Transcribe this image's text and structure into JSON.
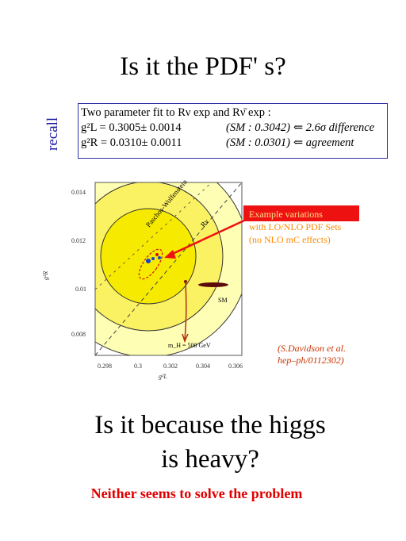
{
  "title": "Is it the PDF' s?",
  "side_label": "recall",
  "fit_box": {
    "line1": "Two parameter fit to Rν exp and Rν̄ exp :",
    "rows": [
      {
        "param": "g²L = 0.3005± 0.0014",
        "sm": "(SM : 0.3042)",
        "comment": "⇐ 2.6σ  difference"
      },
      {
        "param": "g²R = 0.0310± 0.0011",
        "sm": "(SM : 0.0301)",
        "comment": "⇐ agreement"
      }
    ]
  },
  "plot": {
    "y_ticks": [
      "0.014",
      "0.012",
      "0.01",
      "0.008"
    ],
    "x_ticks": [
      "0.298",
      "0.3",
      "0.302",
      "0.304",
      "0.306"
    ],
    "y_label": "g²R",
    "x_label": "g²L",
    "diag_label": "Paschos-Wolfenstein",
    "r_label": "Rν",
    "sm_label": "SM",
    "higgs_label": "m_H = 500 GeV",
    "colors": {
      "outer": "#fefeb4",
      "middle": "#fbf263",
      "inner": "#f5ea00",
      "arrow": "#ee1111"
    }
  },
  "legend": {
    "line1": "Example variations",
    "line2": "with LO/NLO PDF Sets",
    "line3": "(no NLO mC effects)"
  },
  "citation": {
    "line1": "(S.Davidson et al.",
    "line2": "hep–ph/0112302)"
  },
  "question": {
    "line1": "Is it because the higgs",
    "line2": "is heavy?"
  },
  "conclusion": "Neither seems to  solve the problem"
}
